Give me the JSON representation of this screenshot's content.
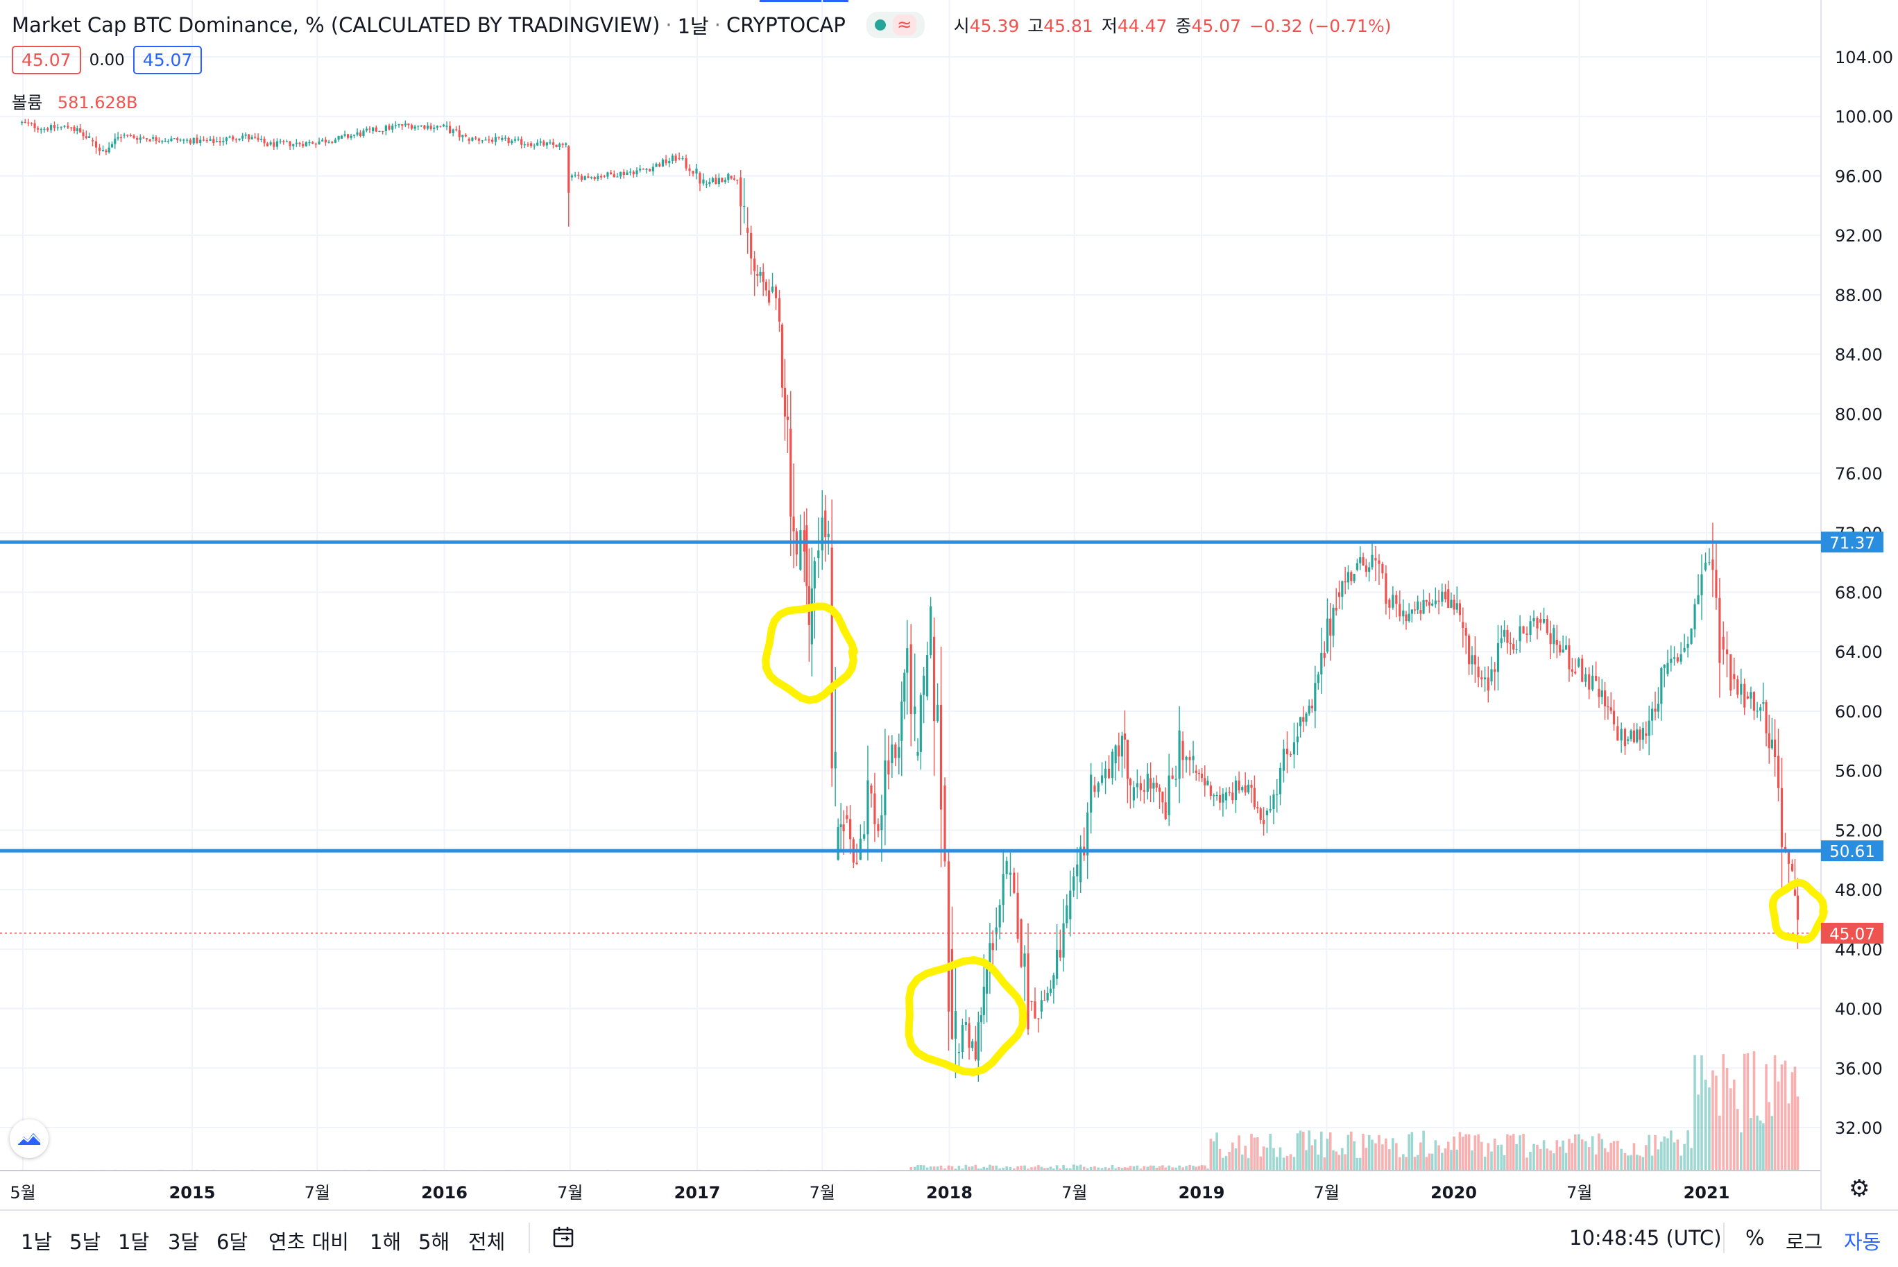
{
  "legend": {
    "title": "Market Cap BTC Dominance, % (CALCULATED BY TRADINGVIEW)",
    "interval": "1날",
    "exchange": "CRYPTOCAP",
    "status_icon": "market-open-dot",
    "wave_icon": "≈",
    "ohlc": [
      {
        "key": "시",
        "value": "45.39"
      },
      {
        "key": "고",
        "value": "45.81"
      },
      {
        "key": "저",
        "value": "44.47"
      },
      {
        "key": "종",
        "value": "45.07"
      },
      {
        "key": "",
        "value": "−0.32 (−0.71%)"
      }
    ]
  },
  "price_boxes": {
    "sell": "45.07",
    "spread": "0.00",
    "buy": "45.07"
  },
  "volume": {
    "label": "볼륨",
    "value": "581.628B"
  },
  "colors": {
    "up": "#26a69a",
    "down": "#ef5350",
    "hline": "#2a8ee0",
    "circle": "#fff200"
  },
  "chart_data": {
    "type": "candlestick",
    "title": "Market Cap BTC Dominance, % (CALCULATED BY TRADINGVIEW)",
    "interval": "1D",
    "y_ticks": [
      "104.00",
      "100.00",
      "96.00",
      "92.00",
      "88.00",
      "84.00",
      "80.00",
      "76.00",
      "72.00",
      "68.00",
      "64.00",
      "60.00",
      "56.00",
      "52.00",
      "48.00",
      "44.00",
      "40.00",
      "36.00",
      "32.00"
    ],
    "y_tick_values": [
      104,
      100,
      96,
      92,
      88,
      84,
      80,
      76,
      72,
      68,
      64,
      60,
      56,
      52,
      48,
      44,
      40,
      36,
      32
    ],
    "x_ticks": [
      {
        "label": "5월",
        "date": "2014-05-01"
      },
      {
        "label": "2015",
        "date": "2015-01-01"
      },
      {
        "label": "7월",
        "date": "2015-07-01"
      },
      {
        "label": "2016",
        "date": "2016-01-01"
      },
      {
        "label": "7월",
        "date": "2016-07-01"
      },
      {
        "label": "2017",
        "date": "2017-01-01"
      },
      {
        "label": "7월",
        "date": "2017-07-01"
      },
      {
        "label": "2018",
        "date": "2018-01-01"
      },
      {
        "label": "7월",
        "date": "2018-07-01"
      },
      {
        "label": "2019",
        "date": "2019-01-01"
      },
      {
        "label": "7월",
        "date": "2019-07-01"
      },
      {
        "label": "2020",
        "date": "2020-01-01"
      },
      {
        "label": "7월",
        "date": "2020-07-01"
      },
      {
        "label": "2021",
        "date": "2021-01-01"
      }
    ],
    "horizontal_lines": [
      {
        "value": 71.37,
        "label": "71.37"
      },
      {
        "value": 50.61,
        "label": "50.61"
      }
    ],
    "last_price": {
      "value": 45.07,
      "label": "45.07"
    },
    "highlight_circles": [
      {
        "date": "2017-06-12",
        "value": 64.0
      },
      {
        "date": "2018-01-21",
        "value": 39.5
      },
      {
        "date": "2021-05-13",
        "value": 46.5
      }
    ],
    "series": [
      {
        "points": [
          [
            "2014-04-25",
            99.6
          ],
          [
            "2014-06-01",
            99.2
          ],
          [
            "2014-07-10",
            99.3
          ],
          [
            "2014-08-05",
            98.4
          ],
          [
            "2014-08-25",
            97.7
          ],
          [
            "2014-09-20",
            98.7
          ],
          [
            "2014-11-01",
            98.5
          ],
          [
            "2014-12-15",
            98.4
          ],
          [
            "2015-02-01",
            98.3
          ],
          [
            "2015-03-15",
            98.7
          ],
          [
            "2015-04-20",
            98.1
          ],
          [
            "2015-06-15",
            98.2
          ],
          [
            "2015-08-01",
            98.5
          ],
          [
            "2015-09-15",
            99.0
          ],
          [
            "2015-11-01",
            99.4
          ],
          [
            "2015-12-31",
            99.3
          ],
          [
            "2016-02-01",
            98.5
          ],
          [
            "2016-03-20",
            98.4
          ],
          [
            "2016-05-01",
            98.2
          ],
          [
            "2016-06-25",
            98.0
          ],
          [
            "2016-06-29",
            95.9
          ],
          [
            "2016-08-15",
            96.0
          ],
          [
            "2016-10-15",
            96.4
          ],
          [
            "2016-12-01",
            97.2
          ],
          [
            "2016-12-31",
            96.2
          ],
          [
            "2017-01-10",
            95.4
          ],
          [
            "2017-02-15",
            96.0
          ],
          [
            "2017-02-28",
            95.9
          ],
          [
            "2017-03-10",
            92.5
          ],
          [
            "2017-03-25",
            89.4
          ],
          [
            "2017-04-15",
            88.2
          ],
          [
            "2017-04-30",
            86.0
          ],
          [
            "2017-05-12",
            79.0
          ],
          [
            "2017-05-25",
            69.5
          ],
          [
            "2017-06-05",
            72.5
          ],
          [
            "2017-06-12",
            64.5
          ],
          [
            "2017-06-20",
            70.3
          ],
          [
            "2017-07-01",
            73.5
          ],
          [
            "2017-07-10",
            71.0
          ],
          [
            "2017-07-20",
            50.0
          ],
          [
            "2017-08-01",
            53.0
          ],
          [
            "2017-08-20",
            50.0
          ],
          [
            "2017-09-05",
            55.0
          ],
          [
            "2017-09-20",
            52.0
          ],
          [
            "2017-10-05",
            56.5
          ],
          [
            "2017-10-20",
            58.0
          ],
          [
            "2017-11-01",
            64.5
          ],
          [
            "2017-11-12",
            57.0
          ],
          [
            "2017-11-25",
            61.0
          ],
          [
            "2017-12-05",
            65.0
          ],
          [
            "2017-12-20",
            55.0
          ],
          [
            "2017-12-31",
            44.0
          ],
          [
            "2018-01-10",
            37.0
          ],
          [
            "2018-01-25",
            39.0
          ],
          [
            "2018-02-08",
            36.5
          ],
          [
            "2018-02-20",
            41.0
          ],
          [
            "2018-03-05",
            45.0
          ],
          [
            "2018-03-25",
            49.0
          ],
          [
            "2018-04-10",
            46.0
          ],
          [
            "2018-04-25",
            40.5
          ],
          [
            "2018-05-10",
            39.8
          ],
          [
            "2018-06-01",
            42.0
          ],
          [
            "2018-06-20",
            46.0
          ],
          [
            "2018-07-05",
            48.5
          ],
          [
            "2018-07-25",
            55.0
          ],
          [
            "2018-08-10",
            55.5
          ],
          [
            "2018-08-25",
            56.5
          ],
          [
            "2018-09-08",
            58.5
          ],
          [
            "2018-09-20",
            54.0
          ],
          [
            "2018-10-15",
            55.5
          ],
          [
            "2018-11-10",
            53.0
          ],
          [
            "2018-11-30",
            58.0
          ],
          [
            "2018-12-20",
            56.0
          ],
          [
            "2019-01-10",
            55.0
          ],
          [
            "2019-02-01",
            54.0
          ],
          [
            "2019-03-01",
            55.0
          ],
          [
            "2019-04-01",
            53.0
          ],
          [
            "2019-04-25",
            56.0
          ],
          [
            "2019-05-20",
            59.0
          ],
          [
            "2019-06-10",
            60.0
          ],
          [
            "2019-06-28",
            64.0
          ],
          [
            "2019-07-15",
            68.0
          ],
          [
            "2019-08-10",
            69.5
          ],
          [
            "2019-09-05",
            70.3
          ],
          [
            "2019-09-25",
            67.5
          ],
          [
            "2019-10-20",
            66.5
          ],
          [
            "2019-11-10",
            66.8
          ],
          [
            "2019-12-01",
            67.2
          ],
          [
            "2019-12-20",
            68.2
          ],
          [
            "2020-01-10",
            66.0
          ],
          [
            "2020-02-01",
            63.0
          ],
          [
            "2020-02-20",
            62.0
          ],
          [
            "2020-03-10",
            65.0
          ],
          [
            "2020-04-01",
            64.7
          ],
          [
            "2020-05-01",
            66.2
          ],
          [
            "2020-05-25",
            64.8
          ],
          [
            "2020-06-25",
            63.0
          ],
          [
            "2020-07-25",
            61.5
          ],
          [
            "2020-08-20",
            59.0
          ],
          [
            "2020-09-05",
            58.0
          ],
          [
            "2020-10-01",
            58.5
          ],
          [
            "2020-11-01",
            62.5
          ],
          [
            "2020-11-25",
            64.0
          ],
          [
            "2020-12-10",
            65.5
          ],
          [
            "2020-12-25",
            69.5
          ],
          [
            "2021-01-05",
            70.2
          ],
          [
            "2021-01-20",
            65.0
          ],
          [
            "2021-02-05",
            62.5
          ],
          [
            "2021-02-25",
            61.0
          ],
          [
            "2021-03-20",
            60.5
          ],
          [
            "2021-04-10",
            57.0
          ],
          [
            "2021-04-25",
            50.5
          ],
          [
            "2021-05-05",
            48.0
          ],
          [
            "2021-05-13",
            45.07
          ]
        ]
      }
    ]
  },
  "toolbar": {
    "timeframes": [
      "1날",
      "5날",
      "1달",
      "3달",
      "6달",
      "연초 대비",
      "1해",
      "5해",
      "전체"
    ],
    "compare_icon": "calendar-goto-icon",
    "clock": "10:48:45 (UTC)",
    "percent": "%",
    "log": "로그",
    "auto": "자동"
  }
}
